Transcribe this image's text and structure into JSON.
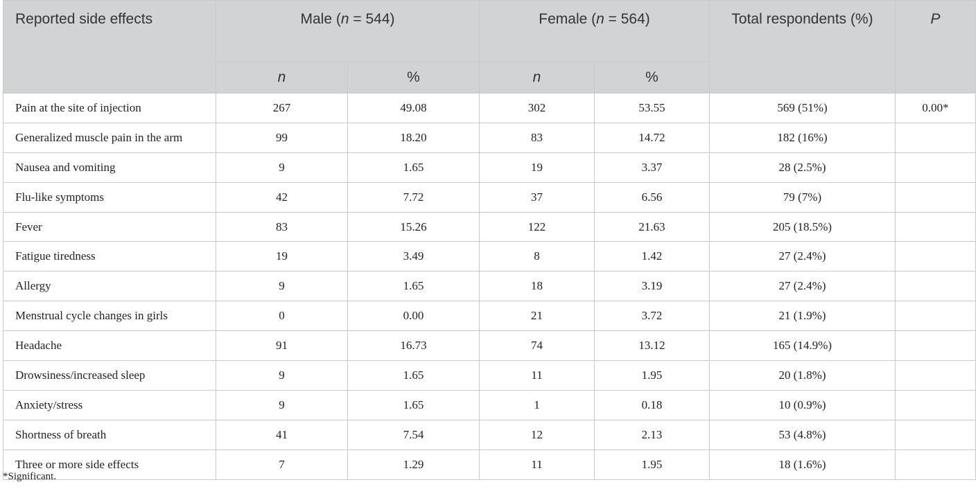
{
  "header": {
    "col_effect": "Reported side effects",
    "male_prefix": "Male (",
    "male_n_label": "n",
    "male_suffix": " = 544)",
    "female_prefix": "Female (",
    "female_n_label": "n",
    "female_suffix": " = 564)",
    "total": "Total respondents (%)",
    "p": "P",
    "sub_n": "n",
    "sub_pct": "%"
  },
  "rows": [
    {
      "effect": "Pain at the site of injection",
      "male_n": "267",
      "male_pct": "49.08",
      "female_n": "302",
      "female_pct": "53.55",
      "total": "569 (51%)",
      "p": "0.00*"
    },
    {
      "effect": "Generalized muscle pain in the arm",
      "male_n": "99",
      "male_pct": "18.20",
      "female_n": "83",
      "female_pct": "14.72",
      "total": "182 (16%)",
      "p": ""
    },
    {
      "effect": "Nausea and vomiting",
      "male_n": "9",
      "male_pct": "1.65",
      "female_n": "19",
      "female_pct": "3.37",
      "total": "28 (2.5%)",
      "p": ""
    },
    {
      "effect": "Flu-like symptoms",
      "male_n": "42",
      "male_pct": "7.72",
      "female_n": "37",
      "female_pct": "6.56",
      "total": "79 (7%)",
      "p": ""
    },
    {
      "effect": "Fever",
      "male_n": "83",
      "male_pct": "15.26",
      "female_n": "122",
      "female_pct": "21.63",
      "total": "205 (18.5%)",
      "p": ""
    },
    {
      "effect": "Fatigue tiredness",
      "male_n": "19",
      "male_pct": "3.49",
      "female_n": "8",
      "female_pct": "1.42",
      "total": "27 (2.4%)",
      "p": ""
    },
    {
      "effect": "Allergy",
      "male_n": "9",
      "male_pct": "1.65",
      "female_n": "18",
      "female_pct": "3.19",
      "total": "27 (2.4%)",
      "p": ""
    },
    {
      "effect": "Menstrual cycle changes in girls",
      "male_n": "0",
      "male_pct": "0.00",
      "female_n": "21",
      "female_pct": "3.72",
      "total": "21 (1.9%)",
      "p": ""
    },
    {
      "effect": "Headache",
      "male_n": "91",
      "male_pct": "16.73",
      "female_n": "74",
      "female_pct": "13.12",
      "total": "165 (14.9%)",
      "p": ""
    },
    {
      "effect": "Drowsiness/increased sleep",
      "male_n": "9",
      "male_pct": "1.65",
      "female_n": "11",
      "female_pct": "1.95",
      "total": "20 (1.8%)",
      "p": ""
    },
    {
      "effect": "Anxiety/stress",
      "male_n": "9",
      "male_pct": "1.65",
      "female_n": "1",
      "female_pct": "0.18",
      "total": "10 (0.9%)",
      "p": ""
    },
    {
      "effect": "Shortness of breath",
      "male_n": "41",
      "male_pct": "7.54",
      "female_n": "12",
      "female_pct": "2.13",
      "total": "53 (4.8%)",
      "p": ""
    },
    {
      "effect": "Three or more side effects",
      "male_n": "7",
      "male_pct": "1.29",
      "female_n": "11",
      "female_pct": "1.95",
      "total": "18 (1.6%)",
      "p": ""
    }
  ],
  "footnote": "*Significant."
}
